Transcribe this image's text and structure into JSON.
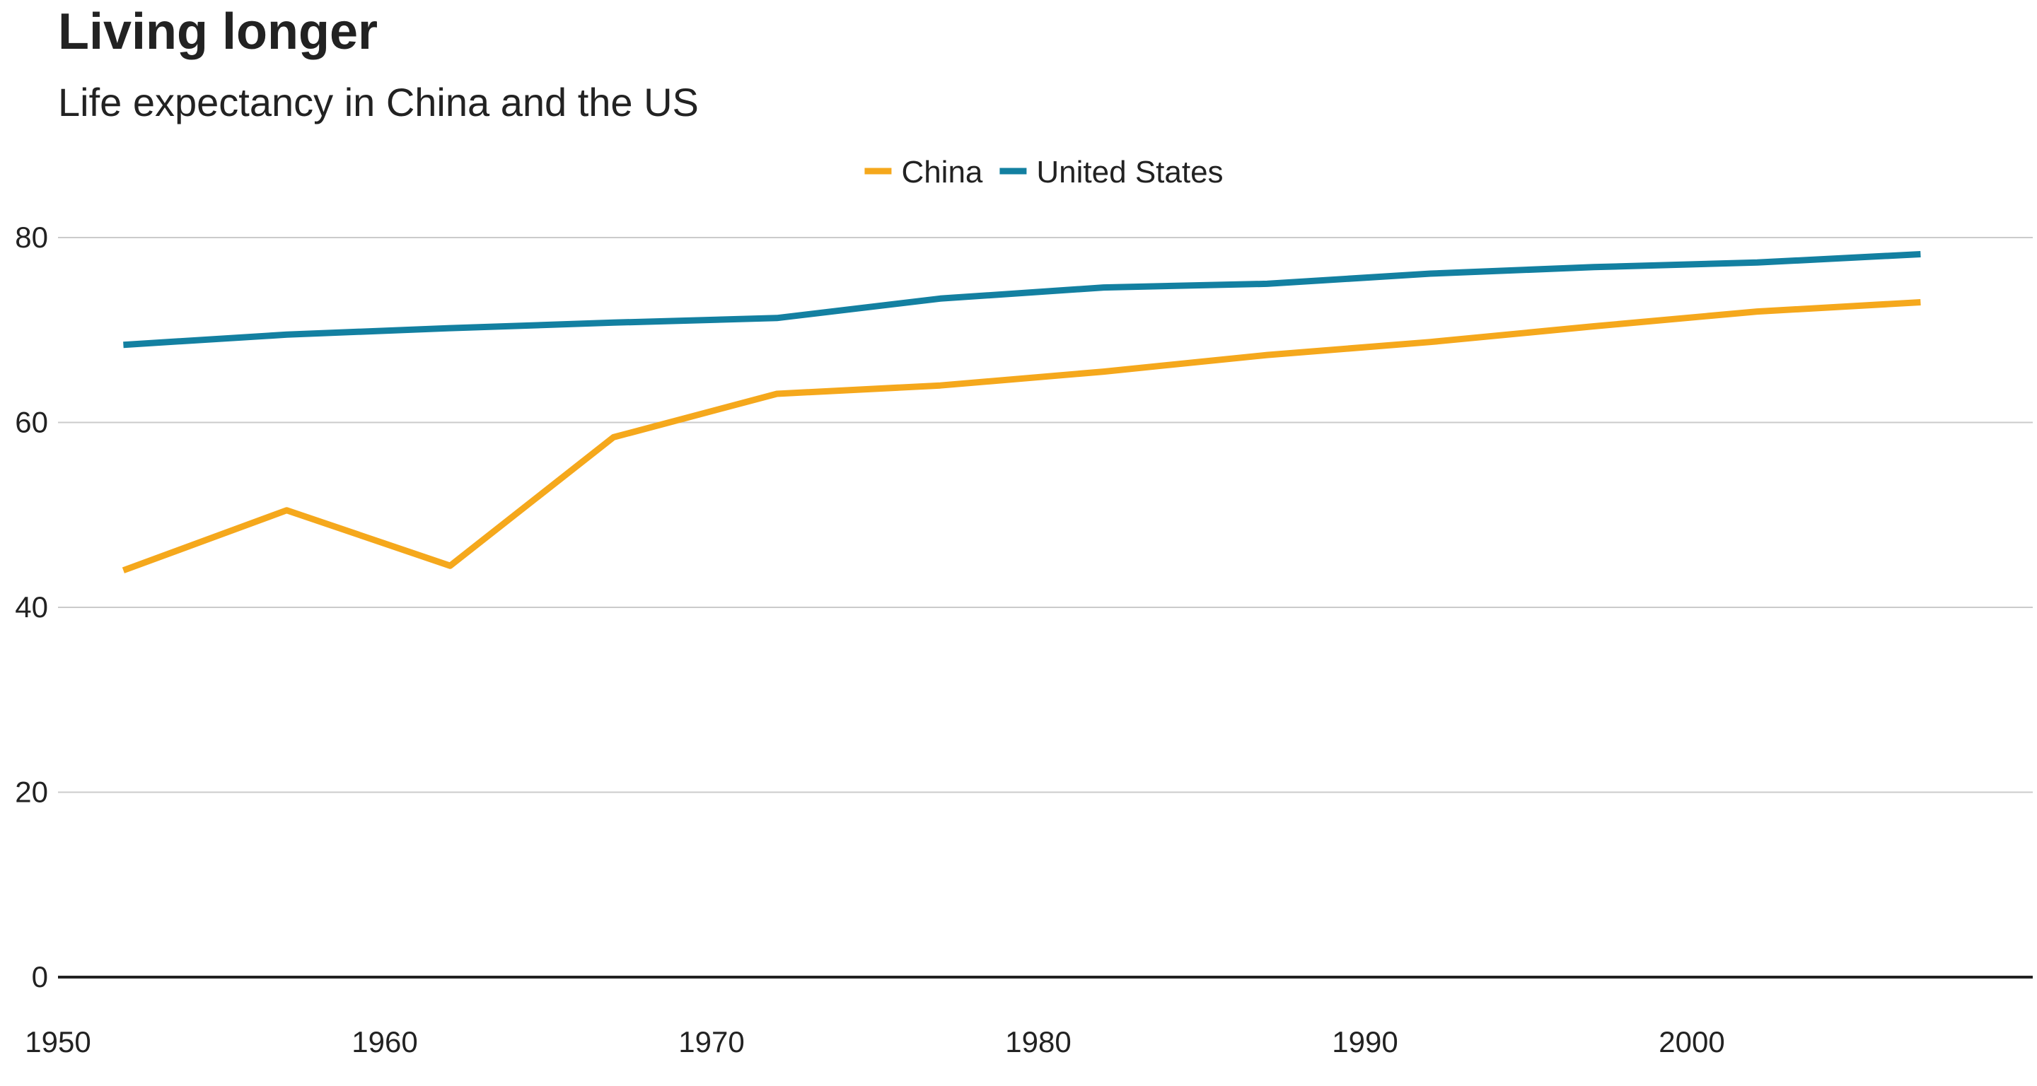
{
  "chart_data": {
    "type": "line",
    "title": "Living longer",
    "subtitle": "Life expectancy in China and the US",
    "xlabel": "",
    "ylabel": "",
    "xlim": [
      1950,
      2010
    ],
    "ylim": [
      0,
      80
    ],
    "x_ticks": [
      1950,
      1960,
      1970,
      1980,
      1990,
      2000
    ],
    "y_ticks": [
      0,
      20,
      40,
      60,
      80
    ],
    "grid": true,
    "legend_position": "top-center",
    "x": [
      1952,
      1957,
      1962,
      1967,
      1972,
      1977,
      1982,
      1987,
      1992,
      1997,
      2002,
      2007
    ],
    "series": [
      {
        "name": "China",
        "color": "#F5A81C",
        "values": [
          44.0,
          50.5,
          44.5,
          58.4,
          63.1,
          64.0,
          65.5,
          67.3,
          68.7,
          70.4,
          72.0,
          73.0
        ]
      },
      {
        "name": "United States",
        "color": "#1380A1",
        "values": [
          68.4,
          69.5,
          70.2,
          70.8,
          71.3,
          73.4,
          74.6,
          75.0,
          76.1,
          76.8,
          77.3,
          78.2
        ]
      }
    ]
  }
}
